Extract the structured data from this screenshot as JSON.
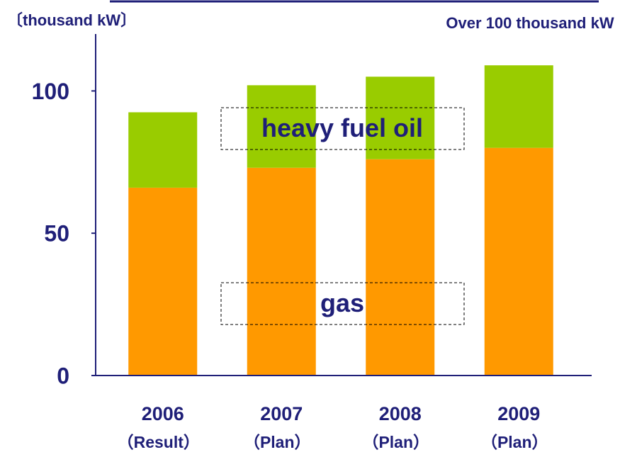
{
  "chart_data": {
    "type": "stacked_bar",
    "y_label": "〔thousand kW〕",
    "annotation": "Over 100 thousand kW",
    "categories": [
      "2006",
      "2007",
      "2008",
      "2009"
    ],
    "sublabels": [
      "（Result）",
      "（Plan）",
      "（Plan）",
      "（Plan）"
    ],
    "series": [
      {
        "name": "gas",
        "color": "#ff9900",
        "values": [
          66,
          73,
          76,
          80
        ]
      },
      {
        "name": "heavy fuel oil",
        "color": "#99cc00",
        "values": [
          26.5,
          29,
          29,
          29
        ]
      }
    ],
    "ylim": [
      0,
      120
    ],
    "yticks": [
      0,
      50,
      100
    ]
  }
}
